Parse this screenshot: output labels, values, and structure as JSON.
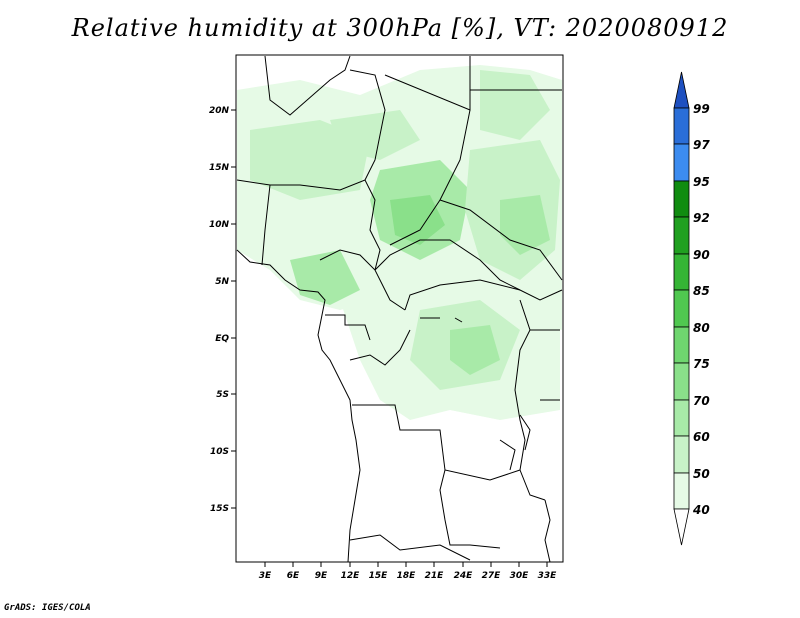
{
  "title": "Relative humidity at 300hPa [%], VT: 2020080912",
  "credit": "GrADS: IGES/COLA",
  "map": {
    "lat_labels": [
      "20N",
      "15N",
      "10N",
      "5N",
      "EQ",
      "5S",
      "10S",
      "15S"
    ],
    "lon_labels": [
      "3E",
      "6E",
      "9E",
      "12E",
      "15E",
      "18E",
      "21E",
      "24E",
      "27E",
      "30E",
      "33E"
    ]
  },
  "colorbar": {
    "levels": [
      "40",
      "50",
      "60",
      "70",
      "75",
      "80",
      "85",
      "90",
      "92",
      "95",
      "97",
      "99"
    ],
    "colors": {
      "lt40": "#ffffff",
      "40_50": "#e6fae6",
      "50_60": "#c8f2c8",
      "60_70": "#a8eaa8",
      "70_75": "#8ae08a",
      "75_80": "#6fd66f",
      "80_85": "#50c850",
      "85_90": "#35b535",
      "90_92": "#20a020",
      "92_95": "#108c10",
      "95_97": "#3c8cf0",
      "97_99": "#2a6ed8",
      "gt99": "#1e50c0"
    }
  }
}
